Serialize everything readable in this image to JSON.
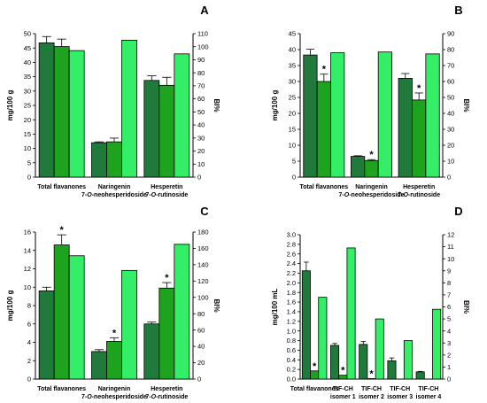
{
  "colors": {
    "dark": "#1f7a3c",
    "medium": "#1ea31e",
    "light": "#33ee66"
  },
  "chart_data": [
    {
      "panel": "A",
      "type": "bar",
      "ylabel": "mg/100 g",
      "y2label": "BI%",
      "ylim": [
        0,
        50
      ],
      "yticks": [
        0,
        5,
        10,
        15,
        20,
        25,
        30,
        35,
        40,
        45,
        50
      ],
      "y2lim": [
        0,
        110
      ],
      "y2ticks": [
        0,
        10,
        20,
        30,
        40,
        50,
        60,
        70,
        80,
        90,
        100,
        110
      ],
      "categories": [
        [
          "Total flavanones"
        ],
        [
          "Naringenin",
          "7-O-neohesperidoside"
        ],
        [
          "Hesperetin",
          "7-O-rutinoside"
        ]
      ],
      "series": [
        {
          "axis": "left",
          "color": "dark",
          "values": [
            46.8,
            12,
            33.7
          ],
          "errors": [
            2.2,
            0.3,
            1.6
          ]
        },
        {
          "axis": "left",
          "color": "medium",
          "values": [
            45.5,
            12.3,
            32
          ],
          "errors": [
            2.6,
            1.3,
            2.8
          ]
        },
        {
          "axis": "right",
          "color": "light",
          "values": [
            97,
            105,
            94.5
          ],
          "errors": [
            0,
            0,
            0
          ]
        }
      ],
      "stars": [
        [
          false,
          false,
          false
        ],
        [
          false,
          false,
          false
        ]
      ]
    },
    {
      "panel": "B",
      "type": "bar",
      "ylabel": "mg/100 g",
      "y2label": "BI%",
      "ylim": [
        0,
        45
      ],
      "yticks": [
        0,
        5,
        10,
        15,
        20,
        25,
        30,
        35,
        40,
        45
      ],
      "y2lim": [
        0,
        90
      ],
      "y2ticks": [
        0,
        10,
        20,
        30,
        40,
        50,
        60,
        70,
        80,
        90
      ],
      "categories": [
        [
          "Total flavanones"
        ],
        [
          "Naringenin",
          "7-O-neohesperidoside"
        ],
        [
          "Hesperetin",
          "7-O-rutinoside"
        ]
      ],
      "series": [
        {
          "axis": "left",
          "color": "dark",
          "values": [
            38.3,
            6.5,
            31
          ],
          "errors": [
            1.8,
            0.2,
            1.5
          ]
        },
        {
          "axis": "left",
          "color": "medium",
          "values": [
            30,
            5.2,
            24.2
          ],
          "errors": [
            2.3,
            0.3,
            2.2
          ]
        },
        {
          "axis": "right",
          "color": "light",
          "values": [
            78,
            78.5,
            77.3
          ],
          "errors": [
            0,
            0,
            0
          ]
        }
      ],
      "stars": [
        [
          false,
          false,
          false
        ],
        [
          true,
          true,
          true
        ]
      ]
    },
    {
      "panel": "C",
      "type": "bar",
      "ylabel": "mg/100 g",
      "y2label": "BI%",
      "ylim": [
        0,
        16
      ],
      "yticks": [
        0,
        2,
        4,
        6,
        8,
        10,
        12,
        14,
        16
      ],
      "y2lim": [
        0,
        180
      ],
      "y2ticks": [
        0,
        20,
        40,
        60,
        80,
        100,
        120,
        140,
        160,
        180
      ],
      "categories": [
        [
          "Total flavanones"
        ],
        [
          "Naringenin",
          "7-O-neohesperidoside"
        ],
        [
          "Hesperetin",
          "7-O-rutinoside"
        ]
      ],
      "series": [
        {
          "axis": "left",
          "color": "dark",
          "values": [
            9.6,
            3,
            6
          ],
          "errors": [
            0.4,
            0.2,
            0.2
          ]
        },
        {
          "axis": "left",
          "color": "medium",
          "values": [
            14.6,
            4.1,
            9.9
          ],
          "errors": [
            1.1,
            0.4,
            0.6
          ]
        },
        {
          "axis": "right",
          "color": "light",
          "values": [
            151,
            133,
            165
          ],
          "errors": [
            0,
            0,
            0
          ]
        }
      ],
      "stars": [
        [
          false,
          false,
          false
        ],
        [
          true,
          true,
          true
        ]
      ]
    },
    {
      "panel": "D",
      "type": "bar",
      "ylabel": "mg/100 mL",
      "y2label": "BI%",
      "ylim": [
        0,
        3.0
      ],
      "yticks": [
        0,
        0.2,
        0.4,
        0.6,
        0.8,
        1.0,
        1.2,
        1.4,
        1.6,
        1.8,
        2.0,
        2.2,
        2.4,
        2.6,
        2.8,
        3.0
      ],
      "ytickfmt": 1,
      "y2lim": [
        0,
        12
      ],
      "y2ticks": [
        0,
        1,
        2,
        3,
        4,
        5,
        6,
        7,
        8,
        9,
        10,
        11,
        12
      ],
      "categories": [
        [
          "Total flavanones"
        ],
        [
          "TIF-CH",
          "isomer 1"
        ],
        [
          "TIF-CH",
          "isomer 2"
        ],
        [
          "TIF-CH",
          "isomer 3"
        ],
        [
          "TIF-CH",
          "isomer 4"
        ]
      ],
      "series": [
        {
          "axis": "left",
          "color": "dark",
          "values": [
            2.25,
            0.7,
            0.72,
            0.38,
            0.15
          ],
          "errors": [
            0.18,
            0.04,
            0.06,
            0.06,
            0.01
          ]
        },
        {
          "axis": "left",
          "color": "medium",
          "values": [
            0.17,
            0.08,
            0.01,
            0.0,
            0.0
          ],
          "errors": [
            0,
            0,
            0,
            0,
            0
          ]
        },
        {
          "axis": "right",
          "color": "light",
          "values": [
            6.8,
            10.9,
            5,
            3.2,
            5.8
          ],
          "errors": [
            0,
            0,
            0,
            0,
            0
          ]
        }
      ],
      "stars": [
        [
          false,
          false,
          false,
          false,
          false
        ],
        [
          true,
          true,
          true,
          false,
          false
        ]
      ]
    }
  ]
}
